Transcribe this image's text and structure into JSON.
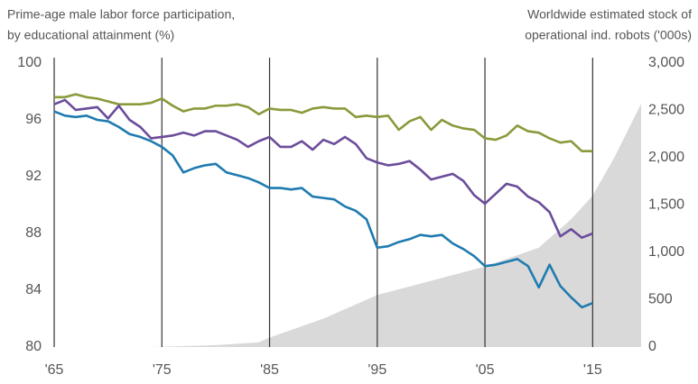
{
  "chart_data": {
    "type": "line",
    "ylabel": [
      "Prime-age male labor force participation,",
      "by educational attainment  (%)"
    ],
    "y2label": [
      "Worldwide estimated stock of",
      "operational ind. robots ('000s)"
    ],
    "x": [
      1965,
      1966,
      1967,
      1968,
      1969,
      1970,
      1971,
      1972,
      1973,
      1974,
      1975,
      1976,
      1977,
      1978,
      1979,
      1980,
      1981,
      1982,
      1983,
      1984,
      1985,
      1986,
      1987,
      1988,
      1989,
      1990,
      1991,
      1992,
      1993,
      1994,
      1995,
      1996,
      1997,
      1998,
      1999,
      2000,
      2001,
      2002,
      2003,
      2004,
      2005,
      2006,
      2007,
      2008,
      2009,
      2010,
      2011,
      2012,
      2013,
      2014,
      2015
    ],
    "xlim": [
      1965,
      2019.5
    ],
    "xticks": [
      {
        "value": 1965,
        "label": "'65"
      },
      {
        "value": 1975,
        "label": "'75"
      },
      {
        "value": 1985,
        "label": "'85"
      },
      {
        "value": 1995,
        "label": "'95"
      },
      {
        "value": 2005,
        "label": "'05"
      },
      {
        "value": 2015,
        "label": "'15"
      }
    ],
    "ylim": [
      80,
      100
    ],
    "yticks": [
      80,
      84,
      88,
      92,
      96,
      100
    ],
    "y2lim": [
      0,
      3000
    ],
    "y2ticks": [
      0,
      500,
      {
        "value": 1000,
        "label": "1,000"
      },
      {
        "value": 1500,
        "label": "1,500"
      },
      {
        "value": 2000,
        "label": "2,000"
      },
      {
        "value": 2500,
        "label": "2,500"
      },
      {
        "value": 3000,
        "label": "3,000"
      }
    ],
    "grid": "x",
    "series": [
      {
        "type": "area",
        "axis": "y2",
        "color": "#d9d9d9",
        "x": [
          1974,
          1980,
          1984,
          1985,
          1990,
          1995,
          2000,
          2005,
          2010,
          2013,
          2015,
          2017,
          2019.5
        ],
        "values": [
          0,
          20,
          50,
          100,
          300,
          550,
          700,
          850,
          1050,
          1350,
          1600,
          2000,
          2570
        ]
      },
      {
        "color": "#8a9a3b",
        "values": [
          97.6,
          97.6,
          97.8,
          97.6,
          97.5,
          97.3,
          97.1,
          97.1,
          97.1,
          97.2,
          97.5,
          97.0,
          96.6,
          96.8,
          96.8,
          97.0,
          97.0,
          97.1,
          96.9,
          96.4,
          96.8,
          96.7,
          96.7,
          96.5,
          96.8,
          96.9,
          96.8,
          96.8,
          96.2,
          96.3,
          96.2,
          96.3,
          95.3,
          95.9,
          96.2,
          95.3,
          96.0,
          95.6,
          95.4,
          95.3,
          94.7,
          94.6,
          94.9,
          95.6,
          95.2,
          95.1,
          94.7,
          94.4,
          94.5,
          93.8,
          93.8
        ]
      },
      {
        "color": "#6b4c9a",
        "values": [
          97.1,
          97.4,
          96.7,
          96.8,
          96.9,
          96.1,
          97.0,
          96.0,
          95.5,
          94.7,
          94.8,
          94.9,
          95.1,
          94.9,
          95.2,
          95.2,
          94.9,
          94.6,
          94.1,
          94.5,
          94.8,
          94.1,
          94.1,
          94.5,
          93.9,
          94.6,
          94.3,
          94.8,
          94.3,
          93.3,
          93.0,
          92.8,
          92.9,
          93.1,
          92.5,
          91.8,
          92.0,
          92.2,
          91.7,
          90.7,
          90.1,
          90.8,
          91.5,
          91.3,
          90.6,
          90.2,
          89.5,
          87.8,
          88.3,
          87.7,
          88.0
        ]
      },
      {
        "color": "#1f7bb0",
        "values": [
          96.6,
          96.3,
          96.2,
          96.3,
          96.0,
          95.9,
          95.5,
          95.0,
          94.8,
          94.5,
          94.1,
          93.5,
          92.3,
          92.6,
          92.8,
          92.9,
          92.3,
          92.1,
          91.9,
          91.6,
          91.2,
          91.2,
          91.1,
          91.2,
          90.6,
          90.5,
          90.4,
          89.9,
          89.6,
          89.0,
          87.0,
          87.1,
          87.4,
          87.6,
          87.9,
          87.8,
          87.9,
          87.3,
          86.9,
          86.4,
          85.7,
          85.8,
          86.0,
          86.2,
          85.7,
          84.2,
          85.8,
          84.3,
          83.5,
          82.8,
          83.1
        ]
      }
    ]
  }
}
